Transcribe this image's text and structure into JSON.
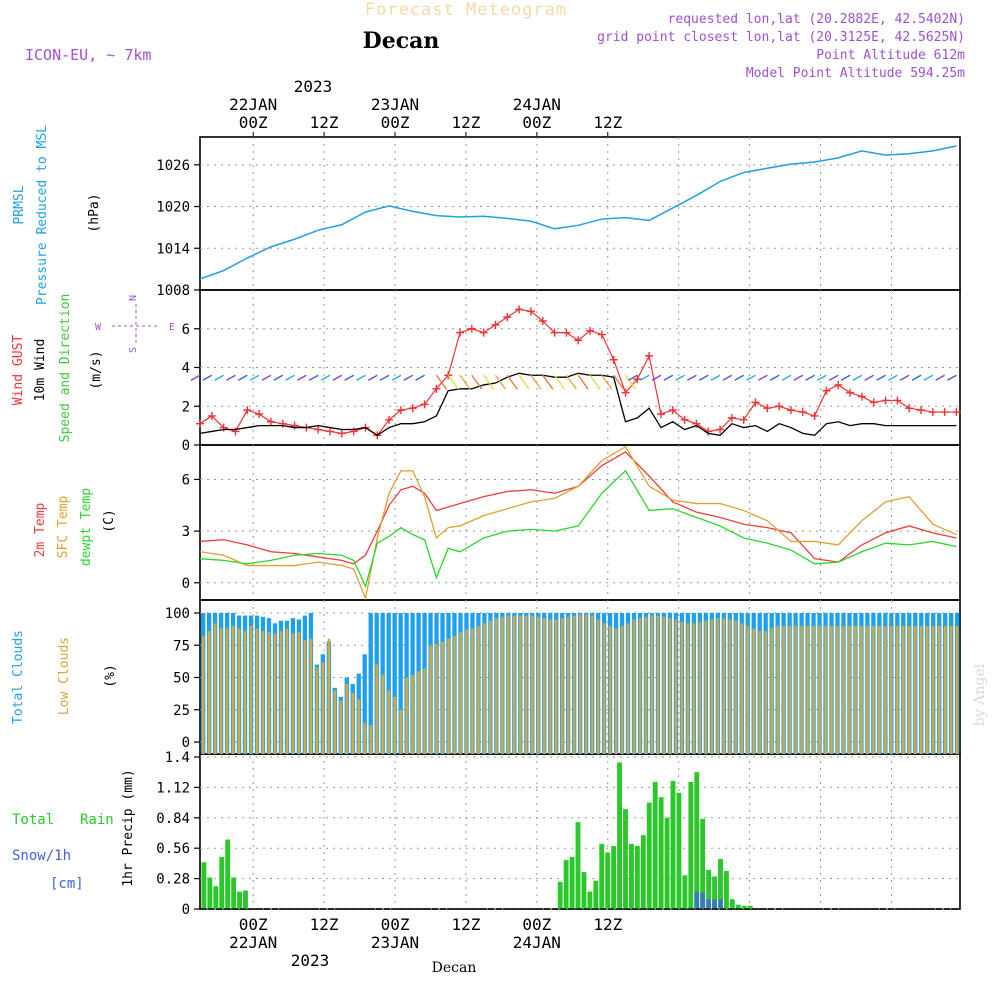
{
  "header": {
    "title": "Forecast Meteogram",
    "station": "Decan",
    "model": "ICON-EU, ~ 7km",
    "requested": "requested lon,lat (20.2882E, 42.5402N)",
    "gridpoint": "grid point closest lon,lat (20.3125E, 42.5625N)",
    "point_alt": "Point Altitude 612m",
    "model_alt": "Model Point Altitude 594.25m",
    "footer_station": "Decan",
    "watermark": "by Angel",
    "year": "2023"
  },
  "time_axis": {
    "hours_shown": "2023-01-21 15Z to 2023-01-24 17Z",
    "top_ticks": [
      "00Z",
      "12Z",
      "00Z",
      "12Z",
      "00Z",
      "12Z"
    ],
    "top_dates": [
      "22JAN",
      "",
      "23JAN",
      "",
      "24JAN",
      ""
    ],
    "bottom_ticks": [
      "00Z",
      "12Z",
      "00Z",
      "12Z",
      "00Z",
      "12Z"
    ],
    "bottom_dates": [
      "22JAN",
      "",
      "23JAN",
      "",
      "24JAN",
      ""
    ]
  },
  "colors": {
    "pressure": "#1ea0e6",
    "gust": "#f03232",
    "wind": "#000000",
    "dir_label": "#3cc83c",
    "temp2m": "#ee3c3c",
    "sfc": "#e0a030",
    "dewpt": "#2ad62a",
    "total_clouds": "#1ea0f0",
    "low_clouds": "#d7a83c",
    "rain": "#2ac82a",
    "snow": "#4060e0",
    "purple": "#a050d0"
  },
  "chart_data": [
    {
      "type": "line",
      "name": "PRMSL",
      "title": "",
      "ylabel": "PRMSL Pressure Reduced to MSL (hPa)",
      "ylim": [
        1008,
        1030
      ],
      "yticks": [
        "1008",
        "1014",
        "1020",
        "1026"
      ],
      "x_hours": [
        0,
        4,
        8,
        12,
        16,
        20,
        24,
        28,
        32,
        36,
        40,
        44,
        48,
        52,
        56,
        60,
        64,
        68,
        72,
        76,
        80,
        84,
        88,
        92,
        96,
        100,
        104,
        108,
        112,
        116,
        120,
        124,
        128
      ],
      "values": [
        1009.6,
        1010.8,
        1012.6,
        1014.2,
        1015.3,
        1016.6,
        1017.4,
        1019.2,
        1020.1,
        1019.3,
        1018.7,
        1018.5,
        1018.6,
        1018.3,
        1017.9,
        1016.8,
        1017.3,
        1018.2,
        1018.4,
        1018.0,
        1019.8,
        1021.6,
        1023.6,
        1024.9,
        1025.5,
        1026.1,
        1026.4,
        1027.0,
        1028.0,
        1027.4,
        1027.6,
        1028.0,
        1028.7
      ]
    },
    {
      "type": "line",
      "name": "Wind",
      "ylabel": "Wind GUST 10m Wind Speed and Direction (m/s)",
      "ylim": [
        0,
        8
      ],
      "yticks": [
        "0",
        "2",
        "4",
        "6"
      ],
      "compass": [
        "N",
        "S",
        "W",
        "E"
      ],
      "x_hours": [
        0,
        2,
        4,
        6,
        8,
        10,
        12,
        14,
        16,
        18,
        20,
        22,
        24,
        26,
        28,
        30,
        32,
        34,
        36,
        38,
        40,
        42,
        44,
        46,
        48,
        50,
        52,
        54,
        56,
        58,
        60,
        62,
        64,
        66,
        68,
        70,
        72,
        74,
        76,
        78,
        80,
        82,
        84,
        86,
        88,
        90,
        92,
        94,
        96,
        98,
        100,
        102,
        104,
        106,
        108,
        110,
        112,
        114,
        116,
        118,
        120,
        122,
        124,
        126,
        128
      ],
      "series": [
        {
          "name": "GUST",
          "values": [
            1.1,
            1.5,
            0.9,
            0.7,
            1.8,
            1.6,
            1.2,
            1.1,
            1.0,
            0.9,
            0.8,
            0.7,
            0.6,
            0.7,
            0.9,
            0.5,
            1.3,
            1.8,
            1.9,
            2.1,
            2.9,
            3.6,
            5.8,
            6.0,
            5.8,
            6.2,
            6.6,
            7.0,
            6.9,
            6.4,
            5.8,
            5.8,
            5.4,
            5.9,
            5.7,
            4.4,
            2.7,
            3.4,
            4.6,
            1.6,
            1.8,
            1.3,
            1.1,
            0.7,
            0.8,
            1.4,
            1.3,
            2.2,
            1.9,
            2.0,
            1.8,
            1.7,
            1.5,
            2.8,
            3.1,
            2.7,
            2.5,
            2.2,
            2.3,
            2.3,
            1.9,
            1.8,
            1.7,
            1.7,
            1.7
          ]
        },
        {
          "name": "10m Wind",
          "values": [
            0.6,
            0.7,
            0.8,
            0.8,
            0.9,
            1.0,
            1.0,
            1.0,
            0.9,
            0.9,
            1.0,
            0.9,
            0.8,
            0.8,
            0.9,
            0.5,
            0.9,
            1.1,
            1.1,
            1.2,
            1.5,
            2.8,
            2.9,
            2.9,
            3.1,
            3.2,
            3.5,
            3.7,
            3.6,
            3.6,
            3.5,
            3.5,
            3.7,
            3.6,
            3.6,
            3.5,
            1.2,
            1.4,
            1.9,
            0.9,
            1.2,
            0.8,
            1.0,
            0.6,
            0.5,
            1.1,
            0.9,
            1.0,
            0.7,
            1.1,
            0.9,
            0.6,
            0.5,
            1.1,
            1.2,
            1.0,
            1.1,
            1.1,
            1.0,
            1.0,
            1.0,
            1.0,
            1.0,
            1.0,
            1.0
          ]
        }
      ]
    },
    {
      "type": "line",
      "name": "Temperature",
      "ylabel": "2m Temp SFC Temp dewpt Temp (C)",
      "ylim": [
        -1,
        8
      ],
      "yticks": [
        "0",
        "3",
        "6"
      ],
      "x_hours": [
        0,
        4,
        8,
        12,
        16,
        20,
        24,
        26,
        28,
        30,
        32,
        34,
        36,
        38,
        40,
        42,
        44,
        46,
        48,
        52,
        56,
        60,
        64,
        68,
        72,
        76,
        80,
        84,
        88,
        92,
        96,
        100,
        104,
        108,
        112,
        116,
        120,
        124,
        128
      ],
      "series": [
        {
          "name": "2m Temp",
          "values": [
            2.4,
            2.5,
            2.2,
            1.8,
            1.7,
            1.5,
            1.3,
            1.1,
            1.6,
            3.0,
            4.5,
            5.4,
            5.6,
            5.2,
            4.2,
            4.4,
            4.6,
            4.8,
            5.0,
            5.3,
            5.4,
            5.2,
            5.6,
            6.8,
            7.6,
            6.2,
            4.7,
            4.1,
            3.8,
            3.4,
            3.2,
            2.9,
            1.4,
            1.2,
            2.2,
            2.9,
            3.3,
            2.9,
            2.6
          ]
        },
        {
          "name": "SFC Temp",
          "values": [
            1.8,
            1.6,
            1.0,
            1.0,
            1.0,
            1.2,
            1.0,
            0.8,
            -0.9,
            2.6,
            5.2,
            6.5,
            6.5,
            5.0,
            2.6,
            3.2,
            3.3,
            3.6,
            3.9,
            4.3,
            4.7,
            4.9,
            5.6,
            7.1,
            7.9,
            5.6,
            4.8,
            4.6,
            4.6,
            4.2,
            3.6,
            2.4,
            2.4,
            2.2,
            3.6,
            4.7,
            5.0,
            3.4,
            2.8
          ]
        },
        {
          "name": "dewpt Temp",
          "values": [
            1.4,
            1.3,
            1.1,
            1.3,
            1.6,
            1.7,
            1.6,
            1.3,
            -0.2,
            2.3,
            2.7,
            3.2,
            2.8,
            2.5,
            0.3,
            2.0,
            1.8,
            2.2,
            2.6,
            3.0,
            3.1,
            3.0,
            3.3,
            5.2,
            6.5,
            4.2,
            4.3,
            3.8,
            3.3,
            2.6,
            2.3,
            1.9,
            1.1,
            1.2,
            1.8,
            2.3,
            2.2,
            2.4,
            2.1
          ]
        }
      ]
    },
    {
      "type": "bar",
      "name": "Clouds",
      "ylabel": "Total Clouds Low Clouds (%)",
      "ylim": [
        0,
        100
      ],
      "yticks": [
        "0",
        "25",
        "50",
        "75",
        "100"
      ],
      "start_hour": 0,
      "series": [
        {
          "name": "Total Clouds",
          "values": [
            100,
            100,
            100,
            100,
            100,
            100,
            98,
            98,
            98,
            98,
            97,
            96,
            92,
            94,
            94,
            96,
            95,
            98,
            100,
            60,
            68,
            78,
            42,
            35,
            50,
            45,
            53,
            68,
            100,
            100,
            100,
            100,
            100,
            100,
            100,
            100,
            100,
            100,
            100,
            100,
            100,
            100,
            100,
            100,
            100,
            100,
            100,
            100,
            100,
            100,
            100,
            100,
            100,
            100,
            100,
            100,
            100,
            100,
            100,
            100,
            100,
            100,
            100,
            100,
            100,
            100,
            100,
            100,
            100,
            100,
            100,
            100,
            100,
            100,
            100,
            100,
            100,
            100,
            100,
            100,
            100,
            100,
            100,
            100,
            100,
            100,
            100,
            100,
            100,
            100,
            100,
            100,
            100,
            100,
            100,
            100,
            100,
            100,
            100,
            100,
            100,
            100,
            100,
            100,
            100,
            100,
            100,
            100,
            100,
            100,
            100,
            100,
            100,
            100,
            100,
            100,
            100,
            100,
            100,
            100,
            100,
            100,
            100,
            100,
            100,
            100,
            100
          ]
        },
        {
          "name": "Low Clouds",
          "values": [
            82,
            86,
            92,
            88,
            88,
            90,
            88,
            86,
            90,
            88,
            86,
            85,
            84,
            86,
            88,
            84,
            85,
            79,
            80,
            58,
            62,
            80,
            40,
            32,
            45,
            38,
            33,
            15,
            13,
            60,
            52,
            40,
            35,
            25,
            50,
            52,
            55,
            57,
            75,
            76,
            78,
            80,
            82,
            85,
            87,
            88,
            90,
            92,
            94,
            96,
            97,
            98,
            98,
            98,
            98,
            98,
            97,
            96,
            95,
            95,
            96,
            97,
            98,
            99,
            99,
            98,
            95,
            92,
            90,
            88,
            90,
            92,
            95,
            96,
            97,
            98,
            98,
            97,
            96,
            95,
            93,
            92,
            92,
            93,
            94,
            95,
            96,
            96,
            95,
            94,
            92,
            90,
            88,
            86,
            86,
            88,
            90,
            90,
            90,
            90,
            90,
            90,
            90,
            90,
            90,
            90,
            90,
            90,
            90,
            90,
            90,
            90,
            90,
            90,
            90,
            90,
            90,
            90,
            90,
            90,
            90,
            90,
            90,
            90,
            90,
            90,
            90
          ]
        }
      ]
    },
    {
      "type": "bar",
      "name": "Precipitation",
      "ylabel": "1hr Precip (mm)",
      "ylim": [
        0,
        1.4
      ],
      "yticks": [
        "0",
        "0.28",
        "0.56",
        "0.84",
        "1.12",
        "1.4"
      ],
      "legend": [
        "Total",
        "Rain",
        "Snow/1h",
        "[cm]"
      ],
      "start_hour": 0,
      "series": [
        {
          "name": "Total Rain",
          "values": [
            0.43,
            0.29,
            0.21,
            0.48,
            0.64,
            0.29,
            0.16,
            0.17,
            0,
            0,
            0,
            0,
            0,
            0,
            0,
            0,
            0,
            0,
            0,
            0,
            0,
            0,
            0,
            0,
            0,
            0,
            0,
            0,
            0,
            0,
            0,
            0,
            0,
            0,
            0,
            0,
            0,
            0,
            0,
            0,
            0,
            0,
            0,
            0,
            0,
            0,
            0,
            0,
            0,
            0,
            0,
            0,
            0,
            0,
            0,
            0,
            0,
            0,
            0,
            0,
            0.25,
            0.45,
            0.48,
            0.8,
            0.34,
            0.16,
            0.26,
            0.6,
            0.52,
            0.58,
            1.35,
            0.92,
            0.6,
            0.58,
            0.68,
            0.98,
            1.17,
            1.03,
            0.84,
            1.18,
            1.07,
            0.31,
            1.17,
            1.26,
            0.83,
            0.36,
            0.3,
            0.46,
            0.35,
            0.09,
            0.04,
            0.03,
            0.03
          ]
        },
        {
          "name": "Snow/1h",
          "values": [
            0,
            0,
            0,
            0,
            0,
            0,
            0,
            0,
            0,
            0,
            0,
            0,
            0,
            0,
            0,
            0,
            0,
            0,
            0,
            0,
            0,
            0,
            0,
            0,
            0,
            0,
            0,
            0,
            0,
            0,
            0,
            0,
            0,
            0,
            0,
            0,
            0,
            0,
            0,
            0,
            0,
            0,
            0,
            0,
            0,
            0,
            0,
            0,
            0,
            0,
            0,
            0,
            0,
            0,
            0,
            0,
            0,
            0,
            0,
            0,
            0,
            0,
            0,
            0,
            0,
            0,
            0,
            0,
            0,
            0,
            0,
            0,
            0,
            0,
            0,
            0,
            0,
            0,
            0,
            0,
            0,
            0,
            0,
            0.16,
            0.15,
            0.09,
            0.09,
            0.09,
            0,
            0,
            0,
            0,
            0
          ]
        }
      ]
    }
  ]
}
